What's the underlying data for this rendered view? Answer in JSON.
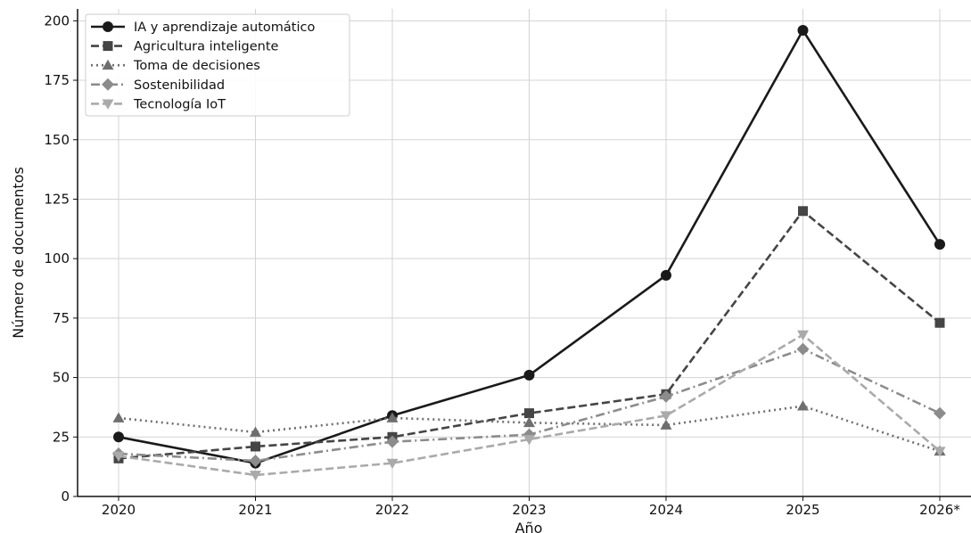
{
  "chart_data": {
    "type": "line",
    "title": "",
    "xlabel": "Año",
    "ylabel": "Número de documentos",
    "categories": [
      "2020",
      "2021",
      "2022",
      "2023",
      "2024",
      "2025",
      "2026*"
    ],
    "ylim": [
      0,
      205
    ],
    "yticks": [
      0,
      25,
      50,
      75,
      100,
      125,
      150,
      175,
      200
    ],
    "grid": true,
    "legend_position": "top-left",
    "series": [
      {
        "name": "IA y aprendizaje automático",
        "values": [
          25,
          14,
          34,
          51,
          93,
          196,
          106
        ],
        "color": "#1a1a1a",
        "line_style": "solid",
        "marker": "circle"
      },
      {
        "name": "Agricultura inteligente",
        "values": [
          16,
          21,
          25,
          35,
          43,
          120,
          73
        ],
        "color": "#454545",
        "line_style": "dashed",
        "marker": "square"
      },
      {
        "name": "Toma de decisiones",
        "values": [
          33,
          27,
          33,
          31,
          30,
          38,
          19
        ],
        "color": "#6e6e6e",
        "line_style": "dotted",
        "marker": "triangle-up"
      },
      {
        "name": "Sostenibilidad",
        "values": [
          18,
          15,
          23,
          26,
          42,
          62,
          35
        ],
        "color": "#8c8c8c",
        "line_style": "dashdot",
        "marker": "diamond"
      },
      {
        "name": "Tecnología IoT",
        "values": [
          17,
          9,
          14,
          24,
          34,
          68,
          19
        ],
        "color": "#aaaaaa",
        "line_style": "dashed",
        "marker": "triangle-down"
      }
    ]
  }
}
